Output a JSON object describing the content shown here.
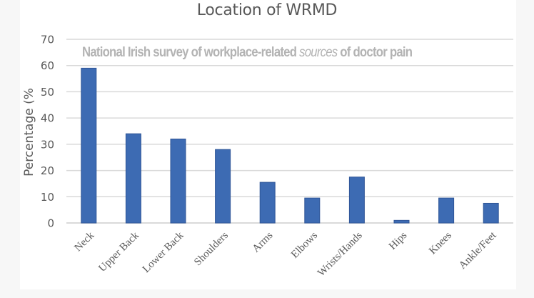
{
  "chart_data": {
    "type": "bar",
    "title": "Location of WRMD",
    "subtitle": "National Irish survey of workplace-related sources of doctor pain",
    "subtitle_parts": {
      "before": "National Irish survey of workplace-related ",
      "emphasis": "sources",
      "after": " of doctor pain"
    },
    "xlabel": "",
    "ylabel": "Percentage (%",
    "categories": [
      "Neck",
      "Upper Back",
      "Lower Back",
      "Shoulders",
      "Arms",
      "Elbows",
      "Wrists/Hands",
      "Hips",
      "Knees",
      "Ankle/Feet"
    ],
    "values": [
      59,
      34,
      32,
      28,
      15.5,
      9.5,
      17.5,
      1,
      9.5,
      7.5
    ],
    "ylim": [
      0,
      70
    ],
    "yticks": [
      0,
      10,
      20,
      30,
      40,
      50,
      60,
      70
    ],
    "grid": true,
    "legend": null,
    "colors": {
      "bar": "#3d6bb3",
      "bar_edge": "#2f5597",
      "grid": "#d9d9d9",
      "text": "#595959",
      "subtitle": "#b3b3b3"
    }
  }
}
